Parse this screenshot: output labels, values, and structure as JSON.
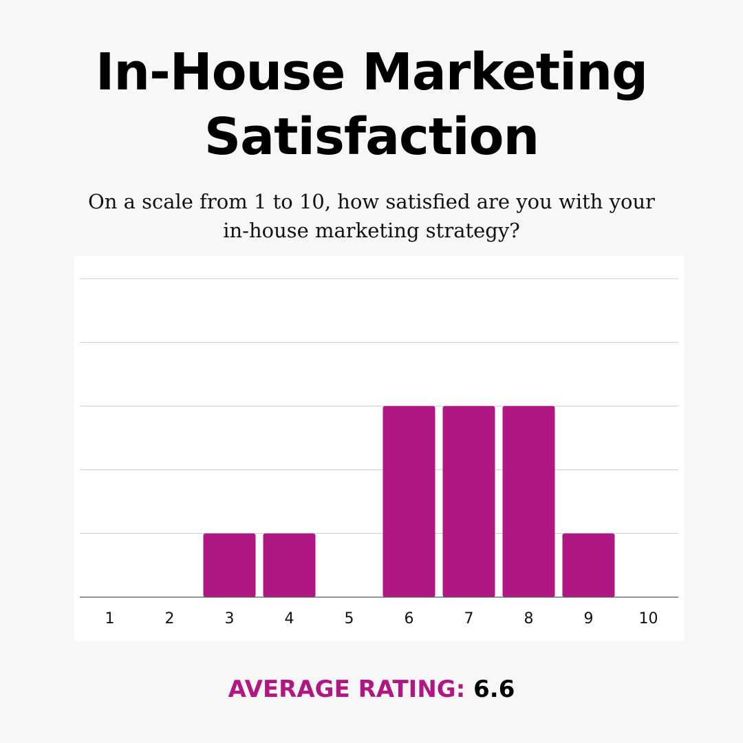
{
  "title_line1": "In-House Marketing",
  "title_line2": "Satisfaction",
  "question_line1": "On a scale from 1 to 10, how satisfied are you with your",
  "question_line2": "in-house marketing strategy?",
  "average": {
    "label": "AVERAGE RATING:",
    "value": "6.6"
  },
  "colors": {
    "bar": "#b01783",
    "grid": "#cccccc",
    "axis": "#555555",
    "background": "#f7f7f7",
    "card": "#ffffff"
  },
  "chart_data": {
    "type": "bar",
    "categories": [
      "1",
      "2",
      "3",
      "4",
      "5",
      "6",
      "7",
      "8",
      "9",
      "10"
    ],
    "values": [
      0,
      0,
      1,
      1,
      0,
      3,
      3,
      3,
      1,
      0
    ],
    "title": "",
    "xlabel": "",
    "ylabel": "",
    "ylim": [
      0,
      5
    ],
    "grid": true,
    "y_tick_labels_shown": false
  }
}
